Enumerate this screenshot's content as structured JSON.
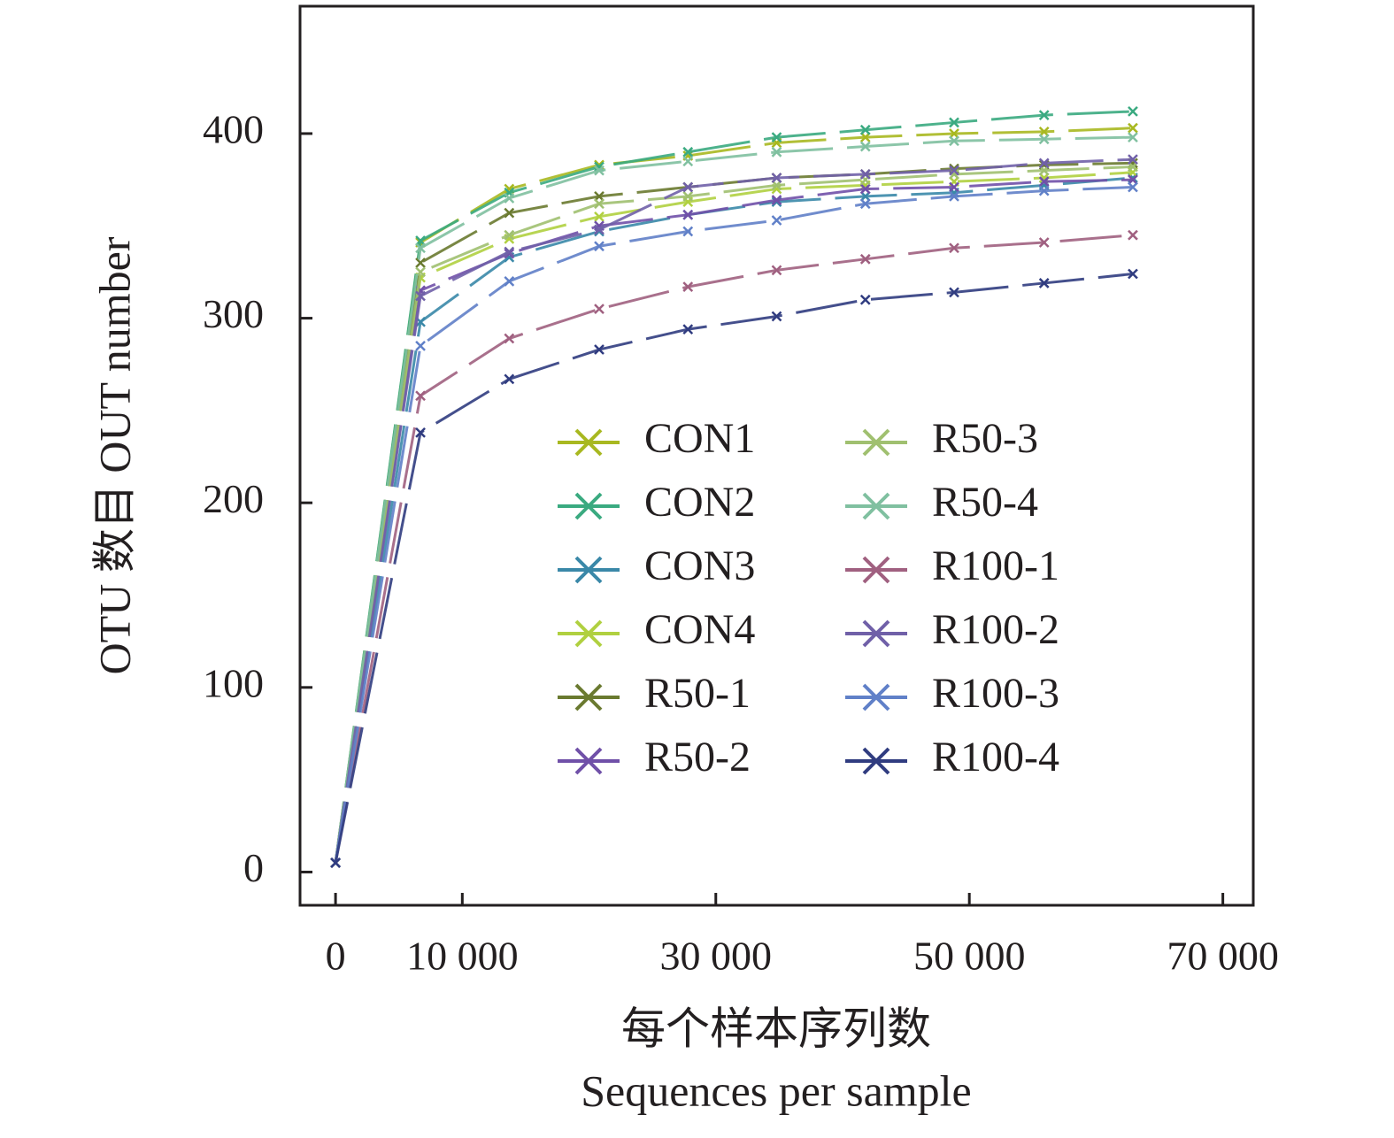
{
  "chart_data": {
    "type": "line",
    "x_label": "每个样本序列数",
    "x_label_2": "Sequences per sample",
    "y_label": "OTU 数目 OUT number",
    "x": [
      0,
      6700,
      13700,
      20800,
      27800,
      34800,
      41800,
      48800,
      55900,
      62900
    ],
    "xlim": [
      -2800,
      72400
    ],
    "ylim": [
      -18,
      469
    ],
    "xticks": [
      0,
      {
        "value": 10000,
        "label": "10 000"
      },
      {
        "value": 30000,
        "label": "30 000"
      },
      {
        "value": 50000,
        "label": "50 000"
      },
      {
        "value": 70000,
        "label": "70 000"
      }
    ],
    "yticks": [
      0,
      100,
      200,
      300,
      400
    ],
    "series": [
      {
        "name": "CON1",
        "color": "#a8b820",
        "values": [
          5,
          341,
          370,
          383,
          388,
          395,
          398,
          400,
          401,
          403
        ]
      },
      {
        "name": "CON2",
        "color": "#3aaa80",
        "values": [
          5,
          342,
          368,
          382,
          390,
          398,
          402,
          406,
          410,
          412
        ]
      },
      {
        "name": "CON3",
        "color": "#3a88a8",
        "values": [
          5,
          298,
          333,
          347,
          356,
          363,
          366,
          368,
          372,
          376
        ]
      },
      {
        "name": "CON4",
        "color": "#b0d040",
        "values": [
          5,
          322,
          343,
          355,
          363,
          370,
          372,
          374,
          376,
          379
        ]
      },
      {
        "name": "R50-1",
        "color": "#6a7a30",
        "values": [
          5,
          330,
          357,
          366,
          371,
          376,
          378,
          381,
          383,
          384
        ]
      },
      {
        "name": "R50-2",
        "color": "#7050a8",
        "values": [
          5,
          315,
          335,
          350,
          356,
          364,
          370,
          371,
          374,
          375
        ]
      },
      {
        "name": "R50-3",
        "color": "#a0c070",
        "values": [
          5,
          325,
          345,
          362,
          366,
          372,
          375,
          378,
          380,
          382
        ]
      },
      {
        "name": "R50-4",
        "color": "#80c0a0",
        "values": [
          5,
          338,
          365,
          380,
          385,
          390,
          393,
          396,
          397,
          398
        ]
      },
      {
        "name": "R100-1",
        "color": "#a06080",
        "values": [
          5,
          258,
          289,
          305,
          317,
          326,
          332,
          338,
          341,
          345
        ]
      },
      {
        "name": "R100-2",
        "color": "#7060a8",
        "values": [
          5,
          312,
          336,
          348,
          371,
          376,
          378,
          380,
          384,
          386
        ]
      },
      {
        "name": "R100-3",
        "color": "#6080c8",
        "values": [
          5,
          285,
          320,
          339,
          347,
          353,
          362,
          366,
          369,
          371
        ]
      },
      {
        "name": "R100-4",
        "color": "#303c80",
        "values": [
          5,
          238,
          267,
          283,
          294,
          301,
          310,
          314,
          319,
          324
        ]
      }
    ]
  }
}
